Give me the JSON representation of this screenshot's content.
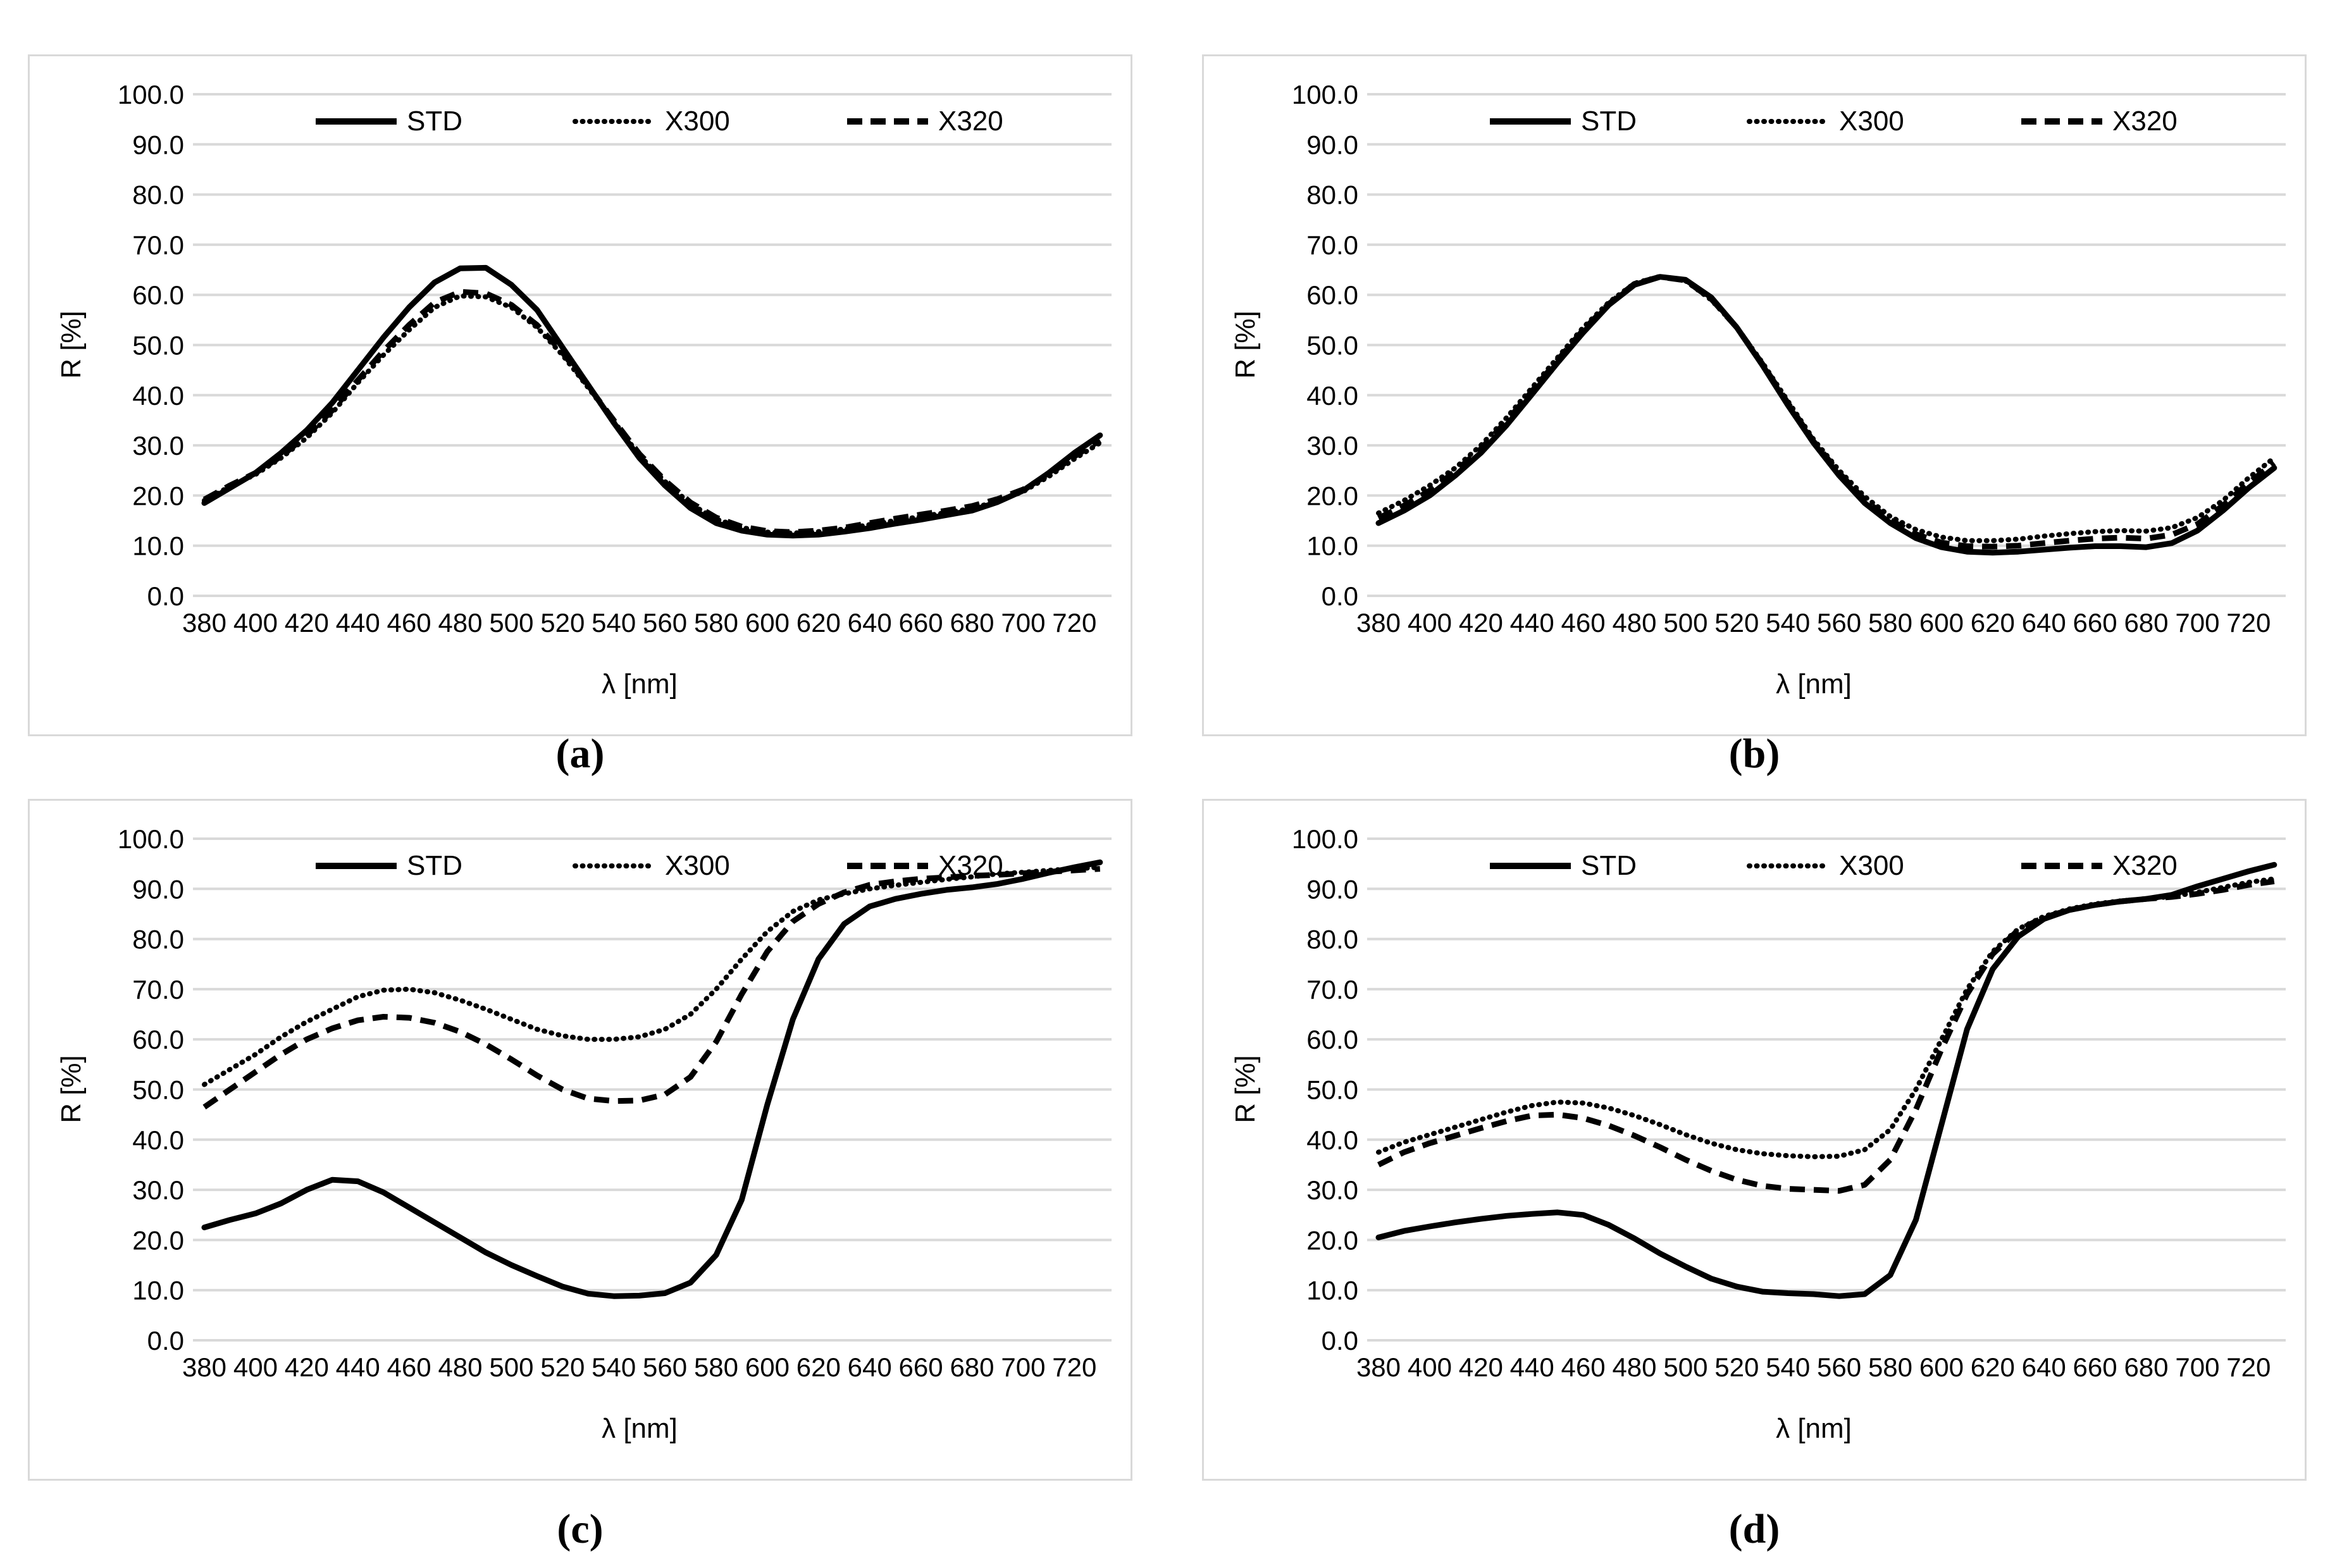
{
  "colors": {
    "line": "#000000",
    "gridline": "#d9d9d9",
    "panel_border": "#d9d9d9",
    "background": "#ffffff",
    "text": "#000000"
  },
  "legend": {
    "items": [
      {
        "label": "STD",
        "style": "solid"
      },
      {
        "label": "X300",
        "style": "dotted"
      },
      {
        "label": "X320",
        "style": "dashed"
      }
    ]
  },
  "axes": {
    "x_label": "λ [nm]",
    "y_label": "R [%]",
    "x_ticks": [
      380,
      400,
      420,
      440,
      460,
      480,
      500,
      520,
      540,
      560,
      580,
      600,
      620,
      640,
      660,
      680,
      700,
      720
    ],
    "y_ticks": [
      "100.0",
      "90.0",
      "80.0",
      "70.0",
      "60.0",
      "50.0",
      "40.0",
      "30.0",
      "20.0",
      "10.0",
      "0.0"
    ],
    "x_range": [
      380,
      730
    ],
    "y_range": [
      0,
      100
    ],
    "grid": "horizontal"
  },
  "chart_data": [
    {
      "type": "line",
      "caption": "(a)",
      "xlabel": "λ [nm]",
      "ylabel": "R [%]",
      "ylim": [
        0,
        100
      ],
      "legend_position": "top-center",
      "x": [
        380,
        390,
        400,
        410,
        420,
        430,
        440,
        450,
        460,
        470,
        480,
        490,
        500,
        510,
        520,
        530,
        540,
        550,
        560,
        570,
        580,
        590,
        600,
        610,
        620,
        630,
        640,
        650,
        660,
        670,
        680,
        690,
        700,
        710,
        720,
        730
      ],
      "series": [
        {
          "name": "STD",
          "style": "solid",
          "values": [
            18.5,
            21.5,
            24.5,
            28.5,
            33,
            38.5,
            45,
            51.5,
            57.5,
            62.5,
            65.3,
            65.4,
            62,
            57,
            49.5,
            42,
            34.5,
            27.5,
            22,
            17.5,
            14.5,
            13,
            12.2,
            12,
            12.2,
            12.8,
            13.5,
            14.4,
            15.2,
            16.1,
            17,
            18.7,
            21,
            24.5,
            28.5,
            32
          ]
        },
        {
          "name": "X300",
          "style": "dotted",
          "values": [
            19,
            21.8,
            24.2,
            27.5,
            31.5,
            36.5,
            42.5,
            48,
            53,
            57.5,
            59.8,
            59.6,
            57.5,
            53.5,
            48,
            41.5,
            34.8,
            28,
            22.8,
            18.3,
            15.3,
            13.6,
            12.7,
            12.5,
            12.8,
            13.3,
            14.2,
            15,
            15.8,
            16.6,
            17.4,
            18.9,
            20.8,
            23.8,
            27.3,
            30.5
          ]
        },
        {
          "name": "X320",
          "style": "dashed",
          "values": [
            19.2,
            22,
            24.5,
            27.8,
            32,
            37,
            43,
            48.8,
            54,
            58.5,
            60.6,
            60.3,
            58,
            54,
            48.5,
            41.8,
            35,
            28.3,
            23,
            18.6,
            15.6,
            13.8,
            12.9,
            12.7,
            13,
            13.6,
            14.5,
            15.4,
            16.2,
            17,
            17.9,
            19.3,
            21.2,
            24.2,
            27.8,
            31
          ]
        }
      ]
    },
    {
      "type": "line",
      "caption": "(b)",
      "xlabel": "λ [nm]",
      "ylabel": "R [%]",
      "ylim": [
        0,
        100
      ],
      "legend_position": "top-center",
      "x": [
        380,
        390,
        400,
        410,
        420,
        430,
        440,
        450,
        460,
        470,
        480,
        490,
        500,
        510,
        520,
        530,
        540,
        550,
        560,
        570,
        580,
        590,
        600,
        610,
        620,
        630,
        640,
        650,
        660,
        670,
        680,
        690,
        700,
        710,
        720,
        730
      ],
      "series": [
        {
          "name": "STD",
          "style": "solid",
          "values": [
            14.5,
            17,
            20,
            24,
            28.5,
            34,
            40.2,
            46.5,
            52.5,
            58,
            62,
            63.6,
            63,
            59.5,
            53.5,
            46,
            38,
            30.5,
            24,
            18.5,
            14.5,
            11.5,
            9.7,
            8.8,
            8.6,
            8.8,
            9.2,
            9.6,
            9.9,
            9.9,
            9.7,
            10.5,
            13,
            17,
            21.5,
            25.5
          ]
        },
        {
          "name": "X300",
          "style": "dotted",
          "values": [
            16.5,
            19,
            22,
            25.5,
            30,
            35.5,
            41.5,
            47.5,
            53.5,
            58.5,
            62.3,
            63.7,
            62.8,
            59,
            53.5,
            46.5,
            38.8,
            31.2,
            25,
            19.8,
            15.8,
            13.2,
            11.7,
            11,
            11,
            11.3,
            11.9,
            12.4,
            12.8,
            13,
            12.9,
            13.6,
            15.6,
            19,
            23.5,
            27.5
          ]
        },
        {
          "name": "X320",
          "style": "dashed",
          "values": [
            15.5,
            18,
            21,
            24.8,
            29.3,
            34.8,
            40.8,
            47,
            53,
            58.2,
            62.2,
            63.6,
            62.9,
            59.2,
            53.5,
            46.2,
            38.4,
            30.8,
            24.5,
            19.1,
            15.1,
            12.3,
            10.6,
            9.9,
            9.8,
            10,
            10.5,
            11,
            11.4,
            11.6,
            11.4,
            12.2,
            14.3,
            18,
            22.5,
            26.5
          ]
        }
      ]
    },
    {
      "type": "line",
      "caption": "(c)",
      "xlabel": "λ [nm]",
      "ylabel": "R [%]",
      "ylim": [
        0,
        100
      ],
      "legend_position": "top-center",
      "x": [
        380,
        390,
        400,
        410,
        420,
        430,
        440,
        450,
        460,
        470,
        480,
        490,
        500,
        510,
        520,
        530,
        540,
        550,
        560,
        570,
        580,
        590,
        600,
        610,
        620,
        630,
        640,
        650,
        660,
        670,
        680,
        690,
        700,
        710,
        720,
        730
      ],
      "series": [
        {
          "name": "STD",
          "style": "solid",
          "values": [
            22.5,
            24,
            25.3,
            27.3,
            30,
            32,
            31.7,
            29.5,
            26.5,
            23.5,
            20.5,
            17.5,
            15,
            12.8,
            10.7,
            9.3,
            8.8,
            8.9,
            9.4,
            11.5,
            17,
            28,
            47,
            64,
            76,
            83,
            86.5,
            88,
            89,
            89.8,
            90.3,
            91,
            92,
            93.2,
            94.3,
            95.3
          ]
        },
        {
          "name": "X300",
          "style": "dotted",
          "values": [
            51,
            54,
            57,
            60.5,
            63.5,
            66,
            68.5,
            69.8,
            70,
            69.3,
            67.8,
            66,
            64,
            62,
            60.7,
            60,
            60,
            60.5,
            62,
            65,
            70,
            76,
            81.5,
            85.5,
            87.8,
            89,
            90,
            90.7,
            91.3,
            91.9,
            92.4,
            93,
            93.3,
            93.7,
            94,
            94.3
          ]
        },
        {
          "name": "X320",
          "style": "dashed",
          "values": [
            46.5,
            50,
            53.5,
            57,
            60,
            62.2,
            63.8,
            64.5,
            64.3,
            63.3,
            61.5,
            59,
            56,
            52.8,
            50,
            48.2,
            47.7,
            47.8,
            49,
            52.5,
            59.5,
            69,
            77.5,
            83.5,
            87,
            89.3,
            90.8,
            91.5,
            92,
            92.3,
            92.6,
            92.8,
            93.1,
            93.4,
            93.7,
            94
          ]
        }
      ]
    },
    {
      "type": "line",
      "caption": "(d)",
      "xlabel": "λ [nm]",
      "ylabel": "R [%]",
      "ylim": [
        0,
        100
      ],
      "legend_position": "top-center",
      "x": [
        380,
        390,
        400,
        410,
        420,
        430,
        440,
        450,
        460,
        470,
        480,
        490,
        500,
        510,
        520,
        530,
        540,
        550,
        560,
        570,
        580,
        590,
        600,
        610,
        620,
        630,
        640,
        650,
        660,
        670,
        680,
        690,
        700,
        710,
        720,
        730
      ],
      "series": [
        {
          "name": "STD",
          "style": "solid",
          "values": [
            20.5,
            21.8,
            22.7,
            23.5,
            24.2,
            24.8,
            25.2,
            25.5,
            25,
            23,
            20.3,
            17.3,
            14.7,
            12.3,
            10.7,
            9.7,
            9.4,
            9.2,
            8.8,
            9.2,
            13,
            24,
            43,
            62,
            74,
            80.5,
            84,
            85.8,
            86.8,
            87.5,
            88,
            88.8,
            90.5,
            92,
            93.5,
            94.8
          ]
        },
        {
          "name": "X300",
          "style": "dotted",
          "values": [
            37.5,
            39.5,
            41,
            42.5,
            44,
            45.5,
            46.8,
            47.5,
            47.3,
            46.3,
            44.8,
            43,
            41,
            39.3,
            38,
            37.2,
            36.8,
            36.6,
            36.7,
            38,
            42,
            50,
            60,
            70,
            77.5,
            82,
            84.5,
            86,
            87,
            87.6,
            88,
            88.5,
            89.3,
            90.3,
            91.3,
            92
          ]
        },
        {
          "name": "X320",
          "style": "dashed",
          "values": [
            35,
            37.5,
            39.3,
            40.8,
            42.3,
            43.7,
            44.8,
            45,
            44.3,
            42.8,
            40.8,
            38.5,
            36,
            33.8,
            32,
            30.8,
            30.2,
            30,
            29.8,
            31,
            36,
            46,
            58,
            69,
            77,
            81.8,
            84.3,
            85.8,
            86.8,
            87.5,
            88,
            88.4,
            89,
            89.8,
            90.8,
            91.5
          ]
        }
      ]
    }
  ]
}
